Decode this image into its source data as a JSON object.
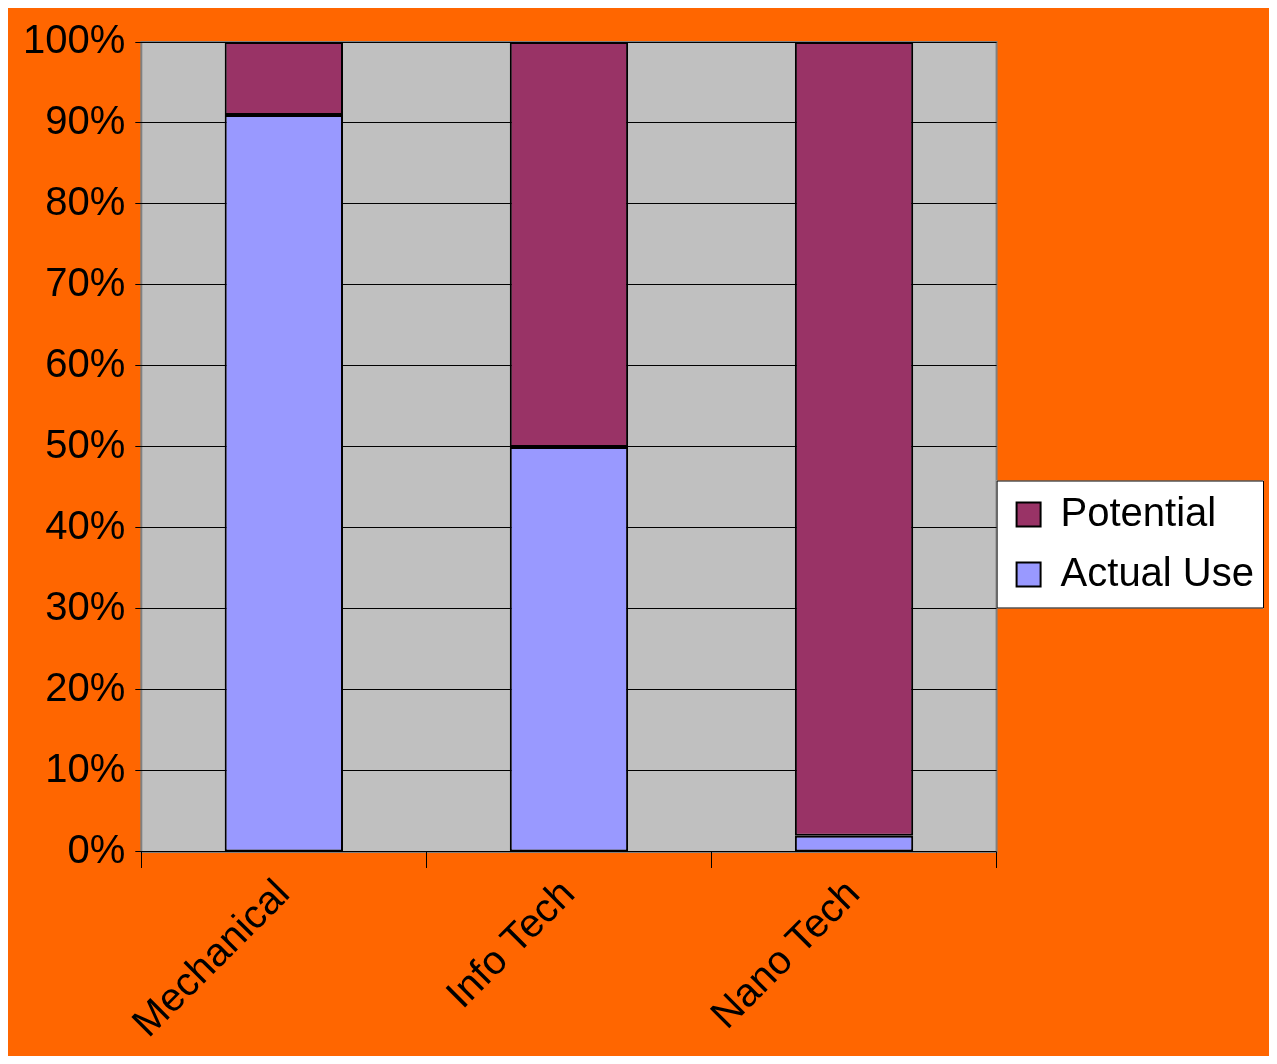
{
  "chart_data": {
    "type": "bar",
    "stacked": true,
    "categories": [
      "Mechanical",
      "Info Tech",
      "Nano Tech"
    ],
    "series": [
      {
        "name": "Actual Use",
        "color": "#9999ff",
        "values": [
          91,
          50,
          2
        ]
      },
      {
        "name": "Potential",
        "color": "#993366",
        "values": [
          9,
          50,
          98
        ]
      }
    ],
    "ylim": [
      0,
      100
    ],
    "yticks": [
      {
        "value": 0,
        "label": "0%"
      },
      {
        "value": 10,
        "label": "10%"
      },
      {
        "value": 20,
        "label": "20%"
      },
      {
        "value": 30,
        "label": "30%"
      },
      {
        "value": 40,
        "label": "40%"
      },
      {
        "value": 50,
        "label": "50%"
      },
      {
        "value": 60,
        "label": "60%"
      },
      {
        "value": 70,
        "label": "70%"
      },
      {
        "value": 80,
        "label": "80%"
      },
      {
        "value": 90,
        "label": "90%"
      },
      {
        "value": 100,
        "label": "100%"
      }
    ],
    "grid": "y",
    "legend": "right"
  }
}
